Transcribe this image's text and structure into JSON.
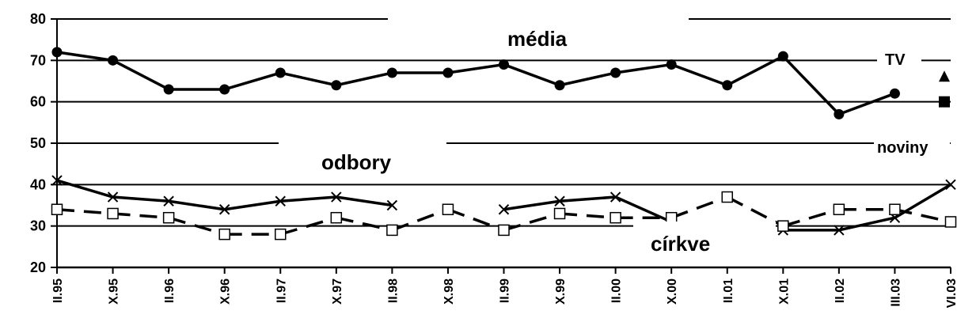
{
  "chart_data": {
    "type": "line",
    "title": "",
    "xlabel": "",
    "ylabel": "",
    "ylim": [
      20,
      80
    ],
    "yticks": [
      20,
      30,
      40,
      50,
      60,
      70,
      80
    ],
    "grid": "horizontal",
    "categories": [
      "II.95",
      "X.95",
      "II.96",
      "X.96",
      "II.97",
      "X.97",
      "II.98",
      "X.98",
      "II.99",
      "X.99",
      "II.00",
      "X.00",
      "II.01",
      "X.01",
      "II.02",
      "III.03",
      "VI.03"
    ],
    "series": [
      {
        "name": "média",
        "marker": "circle",
        "dash": "solid",
        "values": [
          72,
          70,
          63,
          63,
          67,
          64,
          67,
          67,
          69,
          64,
          67,
          69,
          64,
          71,
          57,
          62,
          null
        ]
      },
      {
        "name": "odbory",
        "marker": "x",
        "dash": "solid",
        "values": [
          41,
          37,
          36,
          34,
          36,
          37,
          35,
          null,
          34,
          36,
          37,
          31,
          null,
          29,
          29,
          32,
          40
        ]
      },
      {
        "name": "církve",
        "marker": "square-open",
        "dash": "dashed",
        "values": [
          34,
          33,
          32,
          28,
          28,
          32,
          29,
          34,
          29,
          33,
          32,
          32,
          37,
          30,
          34,
          34,
          31
        ]
      }
    ],
    "extra_points": [
      {
        "name": "TV",
        "marker": "triangle",
        "category": "VI.03",
        "value": 66
      },
      {
        "name": "noviny",
        "marker": "square",
        "category": "VI.03",
        "value": 60
      }
    ],
    "labels": {
      "media": "média",
      "odbory": "odbory",
      "cirkve": "církve",
      "tv": "TV",
      "noviny": "noviny"
    }
  }
}
